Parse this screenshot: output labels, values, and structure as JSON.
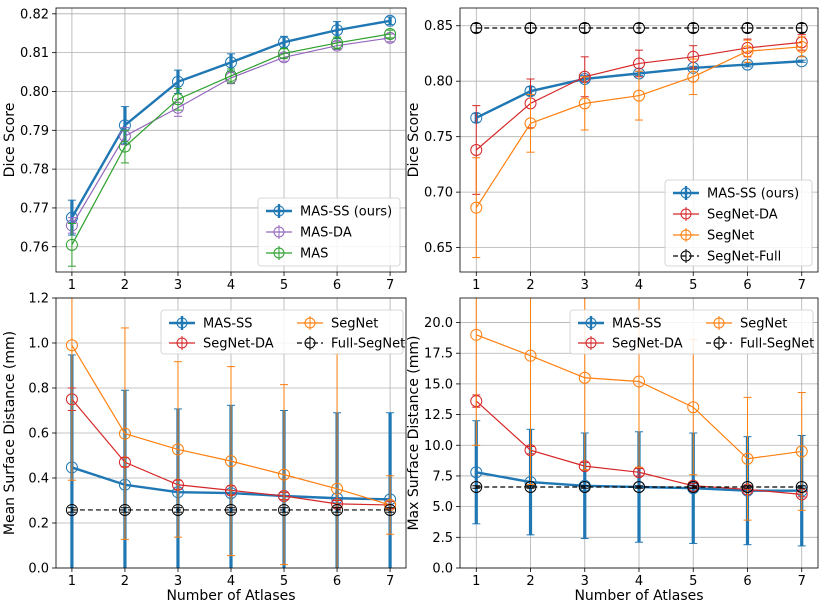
{
  "chart_data": [
    {
      "type": "line",
      "xlabel": "",
      "ylabel": "Dice Score",
      "x": [
        1,
        2,
        3,
        4,
        5,
        6,
        7
      ],
      "xticks": [
        "1",
        "2",
        "3",
        "4",
        "5",
        "6",
        "7"
      ],
      "ylim": [
        0.7535,
        0.8215
      ],
      "yticks": [
        0.76,
        0.77,
        0.78,
        0.79,
        0.8,
        0.81,
        0.82
      ],
      "yticklabels": [
        "0.76",
        "0.77",
        "0.78",
        "0.79",
        "0.80",
        "0.81",
        "0.82"
      ],
      "legend_position": "lower-right",
      "legend_columns": 1,
      "series": [
        {
          "name": "MAS-SS (ours)",
          "color": "#1f77b4",
          "bold": true,
          "dashed": false,
          "values": [
            0.7675,
            0.7913,
            0.8025,
            0.8075,
            0.8127,
            0.8158,
            0.8182
          ],
          "errors": [
            0.0045,
            0.0048,
            0.003,
            0.0022,
            0.0015,
            0.0022,
            0.001
          ]
        },
        {
          "name": "MAS-DA",
          "color": "#9467bd",
          "bold": false,
          "dashed": false,
          "values": [
            0.7655,
            0.7885,
            0.7958,
            0.8035,
            0.8088,
            0.8118,
            0.8138
          ],
          "errors": [
            0.002,
            0.0022,
            0.0022,
            0.0015,
            0.001,
            0.001,
            0.001
          ]
        },
        {
          "name": "MAS",
          "color": "#2ca02c",
          "bold": false,
          "dashed": false,
          "values": [
            0.7605,
            0.7858,
            0.798,
            0.804,
            0.8098,
            0.8125,
            0.8148
          ],
          "errors": [
            0.0055,
            0.0042,
            0.0028,
            0.0018,
            0.0012,
            0.0015,
            0.001
          ]
        }
      ]
    },
    {
      "type": "line",
      "xlabel": "",
      "ylabel": "Dice Score",
      "x": [
        1,
        2,
        3,
        4,
        5,
        6,
        7
      ],
      "xticks": [
        "1",
        "2",
        "3",
        "4",
        "5",
        "6",
        "7"
      ],
      "ylim": [
        0.628,
        0.866
      ],
      "yticks": [
        0.65,
        0.7,
        0.75,
        0.8,
        0.85
      ],
      "yticklabels": [
        "0.65",
        "0.70",
        "0.75",
        "0.80",
        "0.85"
      ],
      "legend_position": "lower-right",
      "legend_columns": 1,
      "series": [
        {
          "name": "MAS-SS (ours)",
          "color": "#1f77b4",
          "bold": true,
          "dashed": false,
          "values": [
            0.767,
            0.791,
            0.802,
            0.807,
            0.812,
            0.815,
            0.818
          ],
          "errors": [
            0.004,
            0.004,
            0.003,
            0.002,
            0.0015,
            0.002,
            0.001
          ]
        },
        {
          "name": "SegNet-DA",
          "color": "#d62728",
          "bold": false,
          "dashed": false,
          "values": [
            0.738,
            0.78,
            0.804,
            0.816,
            0.822,
            0.83,
            0.835
          ],
          "errors": [
            0.04,
            0.022,
            0.018,
            0.012,
            0.01,
            0.008,
            0.007
          ]
        },
        {
          "name": "SegNet",
          "color": "#ff7f0e",
          "bold": false,
          "dashed": false,
          "values": [
            0.686,
            0.762,
            0.78,
            0.787,
            0.804,
            0.827,
            0.831
          ],
          "errors": [
            0.045,
            0.026,
            0.024,
            0.022,
            0.016,
            0.01,
            0.009
          ]
        },
        {
          "name": "SegNet-Full",
          "color": "#000000",
          "bold": false,
          "dashed": true,
          "values": [
            0.848,
            0.848,
            0.848,
            0.848,
            0.848,
            0.848,
            0.848
          ],
          "errors": [
            0.004,
            0.004,
            0.004,
            0.004,
            0.004,
            0.004,
            0.004
          ]
        }
      ]
    },
    {
      "type": "line",
      "xlabel": "Number of Atlases",
      "ylabel": "Mean Surface Distance (mm)",
      "x": [
        1,
        2,
        3,
        4,
        5,
        6,
        7
      ],
      "xticks": [
        "1",
        "2",
        "3",
        "4",
        "5",
        "6",
        "7"
      ],
      "ylim": [
        0.0,
        1.2
      ],
      "yticks": [
        0.0,
        0.2,
        0.4,
        0.6,
        0.8,
        1.0,
        1.2
      ],
      "yticklabels": [
        "0.0",
        "0.2",
        "0.4",
        "0.6",
        "0.8",
        "1.0",
        "1.2"
      ],
      "legend_position": "top-right",
      "legend_columns": 2,
      "series": [
        {
          "name": "MAS-SS",
          "color": "#1f77b4",
          "bold": true,
          "dashed": false,
          "values": [
            0.447,
            0.37,
            0.337,
            0.333,
            0.32,
            0.31,
            0.305
          ],
          "errors": [
            0.5,
            0.42,
            0.37,
            0.39,
            0.38,
            0.38,
            0.385
          ]
        },
        {
          "name": "SegNet-DA",
          "color": "#d62728",
          "bold": false,
          "dashed": false,
          "values": [
            0.75,
            0.47,
            0.37,
            0.345,
            0.32,
            0.285,
            0.28
          ],
          "errors": [
            0.05,
            0.02,
            0.02,
            0.02,
            0.015,
            0.015,
            0.015
          ]
        },
        {
          "name": "SegNet",
          "color": "#ff7f0e",
          "bold": false,
          "dashed": false,
          "values": [
            0.99,
            0.597,
            0.527,
            0.475,
            0.415,
            0.352,
            0.28
          ],
          "errors": [
            0.6,
            0.47,
            0.39,
            0.42,
            0.4,
            0.6,
            0.13
          ]
        },
        {
          "name": "Full-SegNet",
          "color": "#000000",
          "bold": false,
          "dashed": true,
          "values": [
            0.258,
            0.258,
            0.258,
            0.258,
            0.258,
            0.258,
            0.258
          ],
          "errors": [
            0.01,
            0.01,
            0.01,
            0.01,
            0.01,
            0.01,
            0.01
          ]
        }
      ]
    },
    {
      "type": "line",
      "xlabel": "Number of Atlases",
      "ylabel": "Max Surface Distance (mm)",
      "x": [
        1,
        2,
        3,
        4,
        5,
        6,
        7
      ],
      "xticks": [
        "1",
        "2",
        "3",
        "4",
        "5",
        "6",
        "7"
      ],
      "ylim": [
        0.0,
        22.0
      ],
      "yticks": [
        0.0,
        2.5,
        5.0,
        7.5,
        10.0,
        12.5,
        15.0,
        17.5,
        20.0
      ],
      "yticklabels": [
        "0.0",
        "2.5",
        "5.0",
        "7.5",
        "10.0",
        "12.5",
        "15.0",
        "17.5",
        "20.0"
      ],
      "legend_position": "top-right",
      "legend_columns": 2,
      "series": [
        {
          "name": "MAS-SS",
          "color": "#1f77b4",
          "bold": true,
          "dashed": false,
          "values": [
            7.8,
            7.0,
            6.7,
            6.6,
            6.5,
            6.3,
            6.3
          ],
          "errors": [
            4.2,
            4.3,
            4.3,
            4.5,
            4.5,
            4.4,
            4.5
          ]
        },
        {
          "name": "SegNet-DA",
          "color": "#d62728",
          "bold": false,
          "dashed": false,
          "values": [
            13.6,
            9.6,
            8.3,
            7.8,
            6.7,
            6.4,
            6.0
          ],
          "errors": [
            0.5,
            0.3,
            0.3,
            0.3,
            0.2,
            0.2,
            0.2
          ]
        },
        {
          "name": "SegNet",
          "color": "#ff7f0e",
          "bold": false,
          "dashed": false,
          "values": [
            19.0,
            17.3,
            15.5,
            15.2,
            13.1,
            8.9,
            9.5
          ],
          "errors": [
            9.0,
            10.5,
            7.5,
            7.0,
            5.5,
            5.0,
            4.8
          ]
        },
        {
          "name": "Full-SegNet",
          "color": "#000000",
          "bold": false,
          "dashed": true,
          "values": [
            6.6,
            6.6,
            6.6,
            6.6,
            6.6,
            6.6,
            6.6
          ],
          "errors": [
            0.1,
            0.1,
            0.1,
            0.1,
            0.1,
            0.1,
            0.1
          ]
        }
      ]
    }
  ]
}
